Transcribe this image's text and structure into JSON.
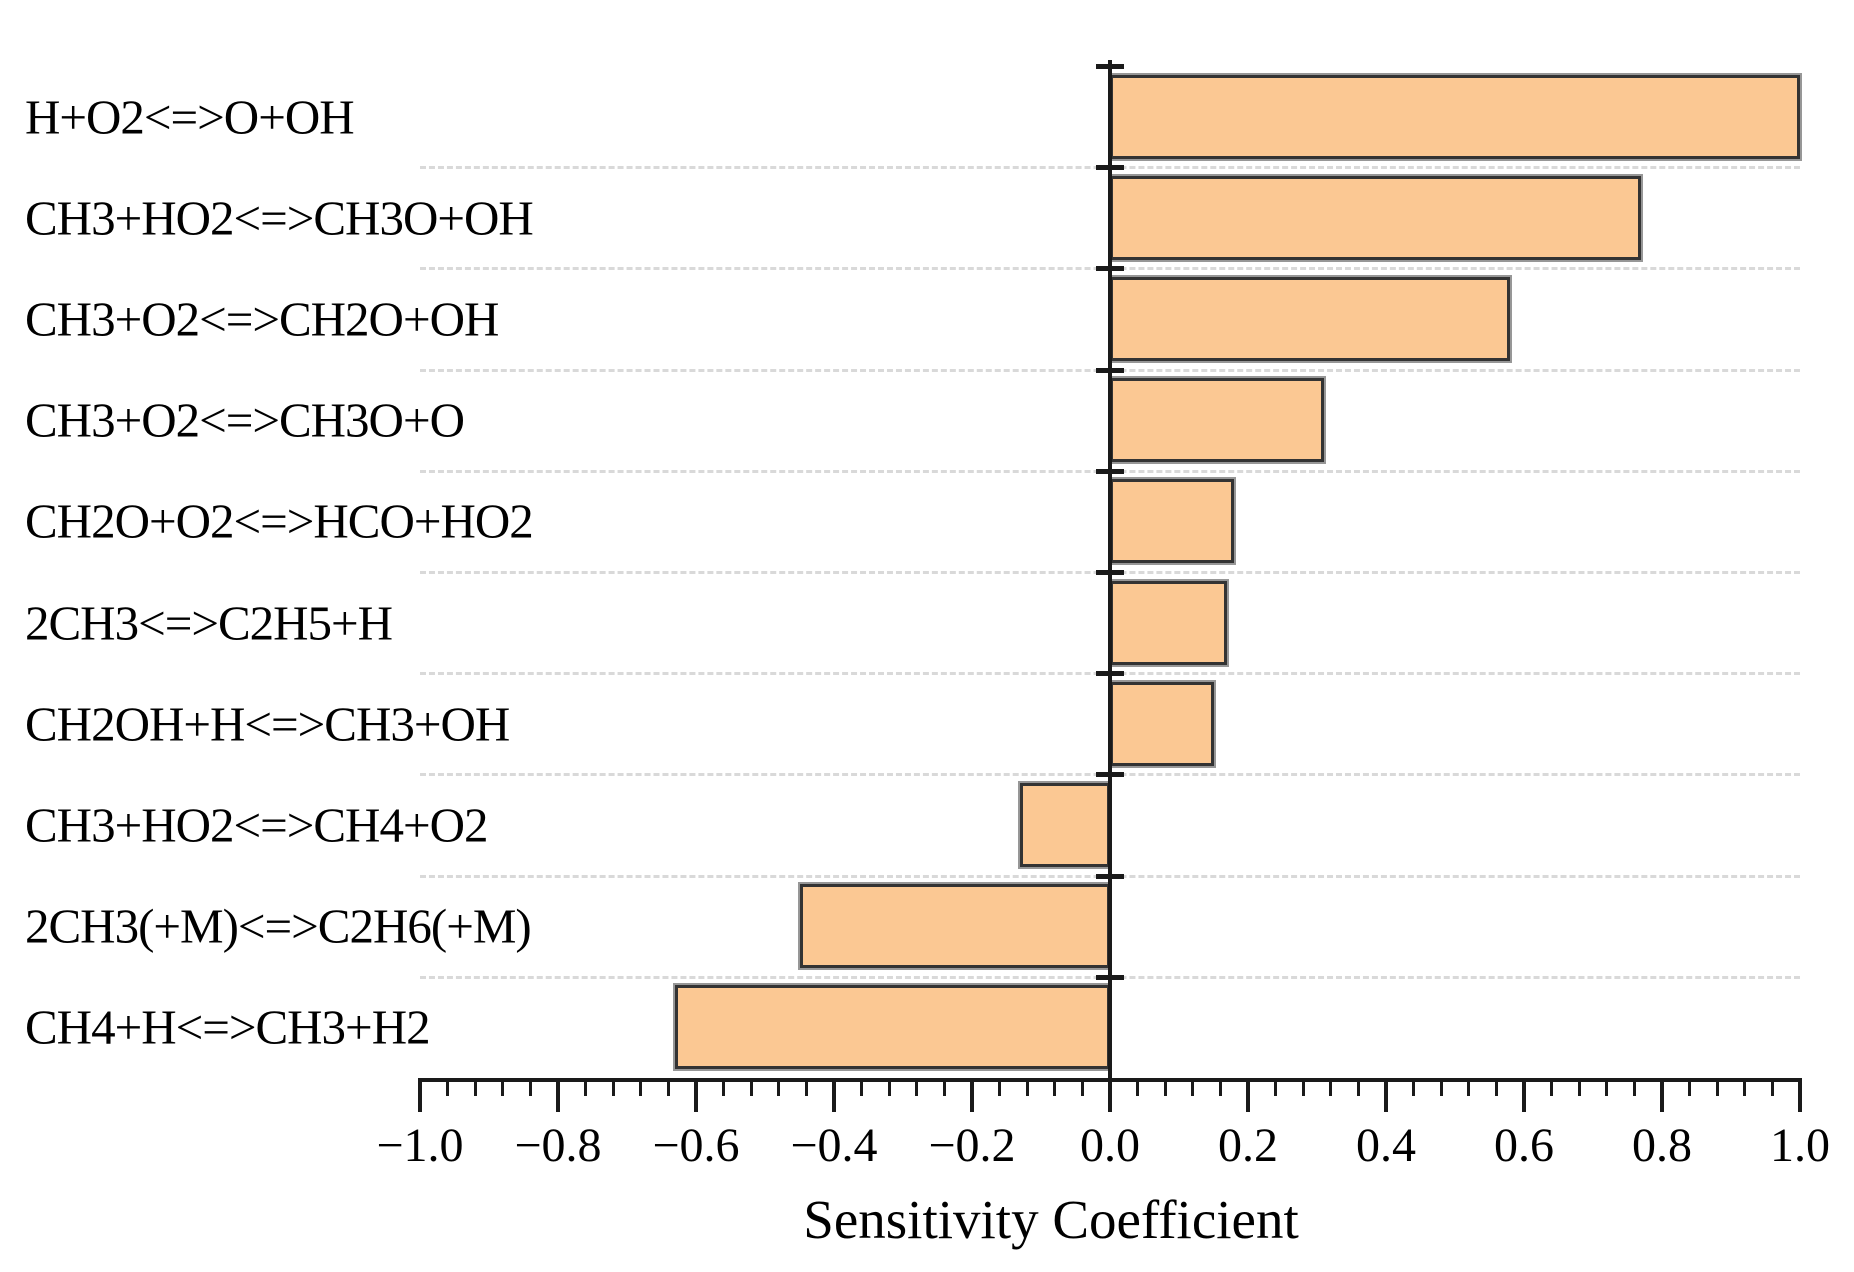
{
  "chart_data": {
    "type": "bar",
    "orientation": "horizontal",
    "title": "",
    "xlabel": "Sensitivity Coefficient",
    "ylabel": "",
    "categories": [
      "H+O2<=>O+OH",
      "CH3+HO2<=>CH3O+OH",
      "CH3+O2<=>CH2O+OH",
      "CH3+O2<=>CH3O+O",
      "CH2O+O2<=>HCO+HO2",
      "2CH3<=>C2H5+H",
      "CH2OH+H<=>CH3+OH",
      "CH3+HO2<=>CH4+O2",
      "2CH3(+M)<=>C2H6(+M)",
      "CH4+H<=>CH3+H2"
    ],
    "values": [
      1.0,
      0.77,
      0.58,
      0.31,
      0.18,
      0.17,
      0.15,
      -0.13,
      -0.45,
      -0.63
    ],
    "xlim": [
      -1.0,
      1.0
    ],
    "x_major_step": 0.2,
    "x_minor_ticks_per_major": 4,
    "x_tick_labels": [
      "−1.0",
      "−0.8",
      "−0.6",
      "−0.4",
      "−0.2",
      "0.0",
      "0.2",
      "0.4",
      "0.6",
      "0.8",
      "1.0"
    ],
    "grid": "horizontal-dashed",
    "legend": "none",
    "bar_fill": "#fbc893",
    "bar_border": "#333333",
    "bar_shadow": "#979797",
    "axis_color": "#1a1a1a",
    "grid_color": "#d9d9d9",
    "text_color": "#000000"
  }
}
